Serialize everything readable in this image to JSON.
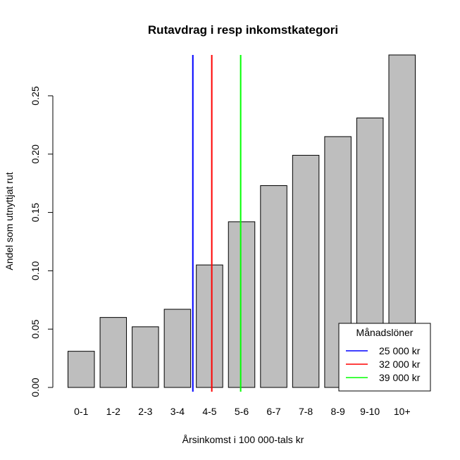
{
  "chart_data": {
    "type": "bar",
    "title": "Rutavdrag i resp inkomstkategori",
    "xlabel": "Årsinkomst i 100 000-tals kr",
    "ylabel": "Andel som utnyttjat rut",
    "categories": [
      "0-1",
      "1-2",
      "2-3",
      "3-4",
      "4-5",
      "5-6",
      "6-7",
      "7-8",
      "8-9",
      "9-10",
      "10+"
    ],
    "values": [
      0.031,
      0.06,
      0.052,
      0.067,
      0.105,
      0.142,
      0.173,
      0.199,
      0.215,
      0.231,
      0.285
    ],
    "ylim": [
      0,
      0.285
    ],
    "yticks": [
      "0.00",
      "0.05",
      "0.10",
      "0.15",
      "0.20",
      "0.25"
    ],
    "bar_color": "#bebebe",
    "reference_lines": [
      {
        "label": "25 000 kr",
        "color": "#0000ff",
        "category_position": 3.98
      },
      {
        "label": "32 000 kr",
        "color": "#ff0000",
        "category_position": 4.57
      },
      {
        "label": "39 000 kr",
        "color": "#00ff00",
        "category_position": 5.47
      }
    ],
    "legend": {
      "title": "Månadslöner",
      "position": "bottom-right"
    },
    "grid": false
  }
}
